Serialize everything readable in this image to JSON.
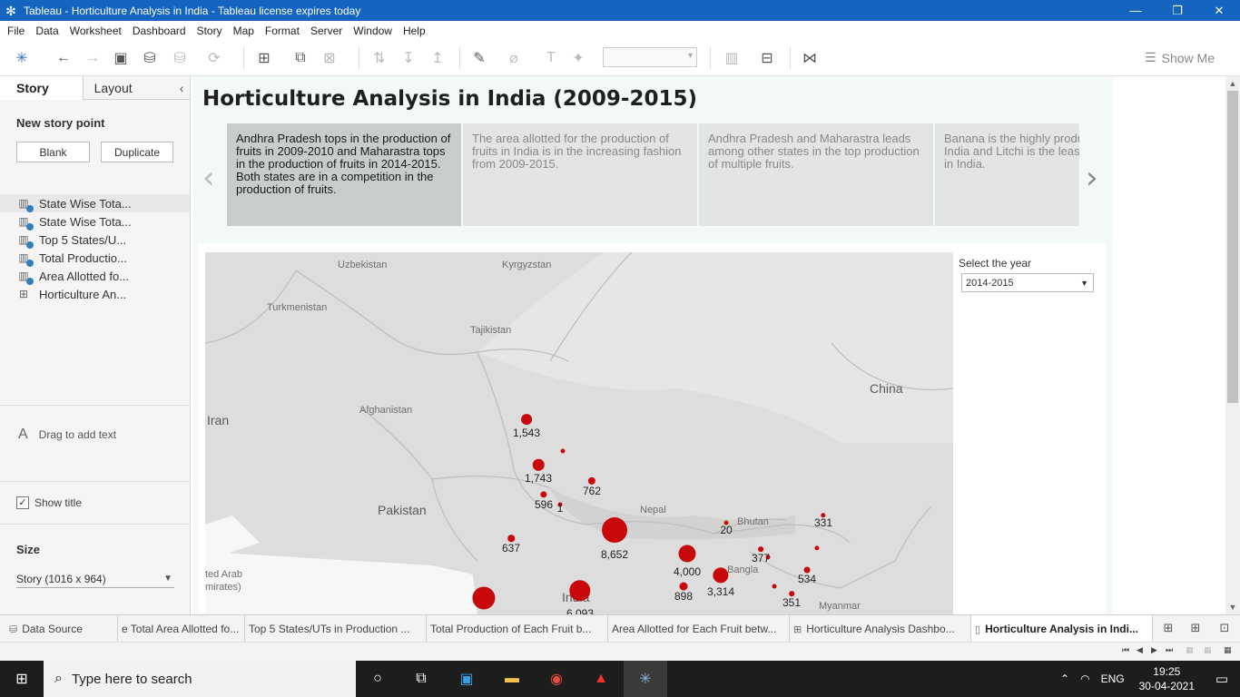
{
  "window": {
    "title": "Tableau - Horticulture Analysis in India - Tableau license expires today",
    "minimize": "—",
    "restore": "❐",
    "close": "✕"
  },
  "menu": [
    "File",
    "Data",
    "Worksheet",
    "Dashboard",
    "Story",
    "Map",
    "Format",
    "Server",
    "Window",
    "Help"
  ],
  "toolbar": {
    "show_me": "Show Me"
  },
  "left_panel": {
    "tabs": {
      "story": "Story",
      "layout": "Layout",
      "collapse": "‹"
    },
    "new_story_point": "New story point",
    "blank": "Blank",
    "duplicate": "Duplicate",
    "sheets": [
      {
        "label": "State Wise Tota...",
        "icon": "chart-icon",
        "used": true
      },
      {
        "label": "State Wise Tota...",
        "icon": "chart-icon",
        "used": true
      },
      {
        "label": "Top 5 States/U...",
        "icon": "chart-icon",
        "used": true
      },
      {
        "label": "Total Productio...",
        "icon": "chart-icon",
        "used": true
      },
      {
        "label": "Area Allotted fo...",
        "icon": "chart-icon",
        "used": true
      },
      {
        "label": "Horticulture An...",
        "icon": "dashboard-icon",
        "used": false
      }
    ],
    "drag_text": "Drag to add text",
    "drag_icon": "A",
    "show_title": "Show title",
    "show_title_checked": "✓",
    "size_heading": "Size",
    "size_value": "Story (1016 x 964)"
  },
  "story": {
    "title": "Horticulture Analysis in India (2009-2015)",
    "points": [
      "Andhra Pradesh tops in the production of fruits in 2009-2010 and Maharastra tops in the production of fruits in 2014-2015. Both states are in a competition in the production of fruits.",
      "The area allotted for the production of fruits in India is in the increasing fashion from 2009-2015.",
      "Andhra Pradesh and Maharastra leads among other states in the top production of multiple fruits.",
      "Banana is the highly produced fruit in India and Litchi is the least produced fruit in India."
    ],
    "active_point": 0,
    "filter": {
      "label": "Select the year",
      "value": "2014-2015"
    },
    "map": {
      "country_labels": [
        "Uzbekistan",
        "Kyrgyzstan",
        "Turkmenistan",
        "Tajikistan",
        "Afghanistan",
        "Iran",
        "Pakistan",
        "China",
        "Nepal",
        "Bhutan",
        "Bangla",
        "India",
        "ted Arab",
        "mirates)",
        "Myanmar"
      ],
      "points": [
        {
          "label": "1,543",
          "value": 1543
        },
        {
          "label": "",
          "value": 150
        },
        {
          "label": "1,743",
          "value": 1743
        },
        {
          "label": "762",
          "value": 762
        },
        {
          "label": "596",
          "value": 596
        },
        {
          "label": "1",
          "value": 1
        },
        {
          "label": "637",
          "value": 637
        },
        {
          "label": "8,652",
          "value": 8652
        },
        {
          "label": "20",
          "value": 20
        },
        {
          "label": "331",
          "value": 331
        },
        {
          "label": "4,000",
          "value": 4000
        },
        {
          "label": "",
          "value": 80
        },
        {
          "label": "377",
          "value": 377
        },
        {
          "label": "",
          "value": 300
        },
        {
          "label": "534",
          "value": 534
        },
        {
          "label": "3,314",
          "value": 3314
        },
        {
          "label": "898",
          "value": 898
        },
        {
          "label": "",
          "value": 250
        },
        {
          "label": "351",
          "value": 351
        },
        {
          "label": "6,093",
          "value": 6093
        },
        {
          "label": "",
          "value": 7000
        }
      ]
    }
  },
  "sheet_tabs": [
    "Data Source",
    "e Total Area Allotted fo...",
    "Top 5 States/UTs in Production ...",
    "Total Production of Each Fruit b...",
    "Area Allotted for Each Fruit betw...",
    "Horticulture Analysis Dashbo...",
    "Horticulture Analysis in Indi..."
  ],
  "taskbar": {
    "search_placeholder": "Type here to search",
    "lang": "ENG",
    "time": "19:25",
    "date": "30-04-2021"
  }
}
